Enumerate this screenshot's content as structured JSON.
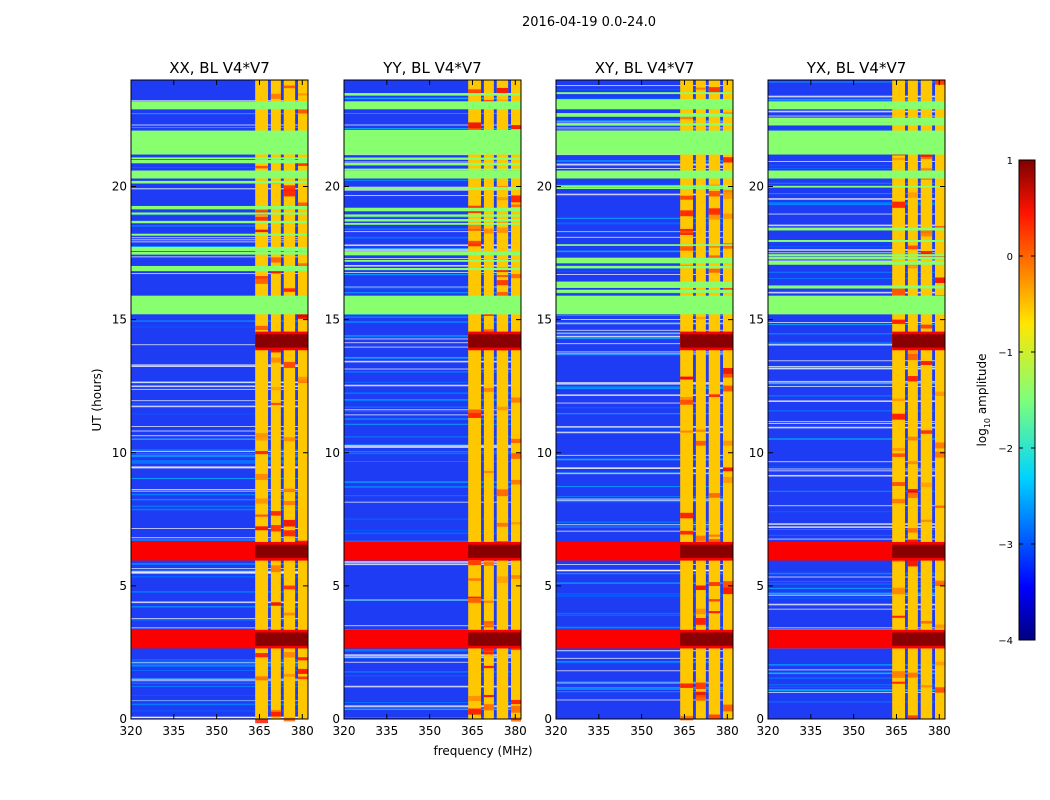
{
  "figure_title": "2016-04-19 0.0-24.0",
  "shared": {
    "xlabel": "frequency (MHz)",
    "ylabel": "UT (hours)",
    "xticks": [
      320,
      335,
      350,
      365,
      380
    ],
    "yticks": [
      0,
      5,
      10,
      15,
      20
    ],
    "xlim": [
      320,
      382
    ],
    "ylim": [
      0,
      24
    ]
  },
  "colorbar": {
    "label": "log",
    "label_sub": "10",
    "label_rest": " amplitude",
    "ticks": [
      "1",
      "0",
      "−1",
      "−2",
      "−3",
      "−4"
    ],
    "range": [
      -4,
      1
    ],
    "colormap": "jet"
  },
  "chart_data": [
    {
      "type": "heatmap",
      "title": "XX, BL V4*V7",
      "xlabel": "",
      "ylabel": "UT (hours)",
      "xlim": [
        320,
        382
      ],
      "ylim": [
        0,
        24
      ],
      "channel_bands_mhz": [
        [
          363.5,
          368.0
        ],
        [
          369.0,
          372.5
        ],
        [
          373.5,
          377.5
        ],
        [
          378.5,
          382.0
        ]
      ],
      "flagged_time_ranges_hours": [
        [
          15.2,
          15.9
        ],
        [
          20.3,
          20.6
        ],
        [
          21.2,
          22.1
        ],
        [
          22.9,
          23.2
        ]
      ],
      "rfi_time_rows_hours": [
        3.0,
        6.3,
        14.2
      ]
    },
    {
      "type": "heatmap",
      "title": "YY, BL V4*V7",
      "xlabel": "",
      "ylabel": "",
      "xlim": [
        320,
        382
      ],
      "ylim": [
        0,
        24
      ],
      "channel_bands_mhz": [
        [
          363.5,
          368.0
        ],
        [
          369.0,
          372.5
        ],
        [
          373.5,
          377.5
        ],
        [
          378.5,
          382.0
        ]
      ],
      "flagged_time_ranges_hours": [
        [
          15.2,
          15.9
        ],
        [
          20.3,
          20.6
        ],
        [
          21.2,
          22.1
        ],
        [
          22.9,
          23.2
        ]
      ],
      "rfi_time_rows_hours": [
        3.0,
        6.3,
        14.2
      ]
    },
    {
      "type": "heatmap",
      "title": "XY, BL V4*V7",
      "xlabel": "",
      "ylabel": "",
      "xlim": [
        320,
        382
      ],
      "ylim": [
        0,
        24
      ],
      "channel_bands_mhz": [
        [
          363.5,
          368.0
        ],
        [
          369.0,
          372.5
        ],
        [
          373.5,
          377.5
        ],
        [
          378.5,
          382.0
        ]
      ],
      "flagged_time_ranges_hours": [
        [
          15.2,
          15.9
        ],
        [
          20.3,
          20.6
        ],
        [
          21.2,
          22.1
        ],
        [
          22.9,
          23.2
        ]
      ],
      "rfi_time_rows_hours": [
        3.0,
        6.3,
        14.2
      ]
    },
    {
      "type": "heatmap",
      "title": "YX, BL V4*V7",
      "xlabel": "",
      "ylabel": "",
      "xlim": [
        320,
        382
      ],
      "ylim": [
        0,
        24
      ],
      "channel_bands_mhz": [
        [
          363.5,
          368.0
        ],
        [
          369.0,
          372.5
        ],
        [
          373.5,
          377.5
        ],
        [
          378.5,
          382.0
        ]
      ],
      "flagged_time_ranges_hours": [
        [
          15.2,
          15.9
        ],
        [
          20.3,
          20.6
        ],
        [
          21.2,
          22.1
        ],
        [
          22.9,
          23.2
        ]
      ],
      "rfi_time_rows_hours": [
        3.0,
        6.3,
        14.2
      ]
    }
  ]
}
